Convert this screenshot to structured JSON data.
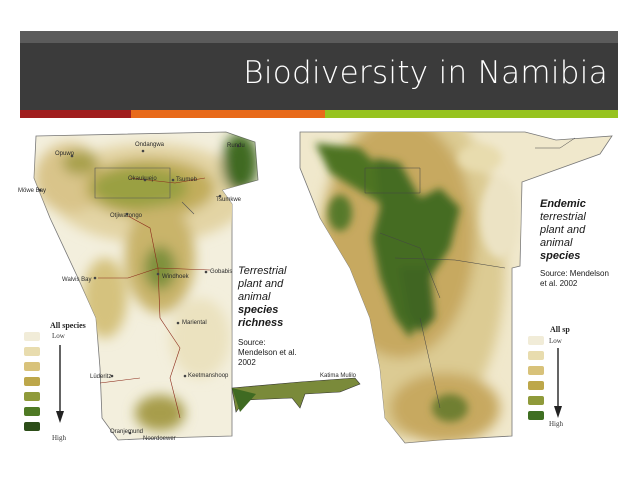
{
  "slide": {
    "title": "Biodiversity in Namibia"
  },
  "map_left": {
    "places": {
      "rundu": "Rundu",
      "ondangwa": "Ondangwa",
      "opuwo": "Opuwo",
      "mowe_bay": "Möwe Bay",
      "okaukuejo": "Okaukuejo",
      "tsumeb": "Tsumeb",
      "tsumkwe": "Tsumkwe",
      "otjiwarongo": "Otjiwarongo",
      "walvis_bay": "Walvis Bay",
      "windhoek": "Windhoek",
      "gobabis": "Gobabis",
      "mariental": "Mariental",
      "luderitz": "Lüderitz",
      "keetmanshoop": "Keetmanshoop",
      "oranjemund": "Oranjemund",
      "noordoewer": "Noordoewer",
      "katima": "Katima Mulilo"
    },
    "caption": {
      "line1": "Terrestrial",
      "line2": "plant and",
      "line3": "animal",
      "line4": "species",
      "line5": "richness",
      "source1": "Source:",
      "source2": "Mendelson et al.",
      "source3": "2002"
    },
    "legend": {
      "title": "All species",
      "low": "Low",
      "high": "High",
      "colors": [
        "#f1ecd8",
        "#e8dcae",
        "#d8c27a",
        "#bda74a",
        "#8f9a3a",
        "#4f7a24",
        "#2c4d18"
      ]
    }
  },
  "map_right": {
    "caption": {
      "line1": "Endemic",
      "line2": "terrestrial",
      "line3": "plant and",
      "line4": "animal",
      "line5": "species",
      "source1": "Source: Mendelson",
      "source2": "et al. 2002"
    },
    "legend": {
      "title": "All sp",
      "low": "Low",
      "high": "High",
      "colors": [
        "#f1ecd8",
        "#e8dcae",
        "#d8c27a",
        "#bda74a",
        "#8f9a3a",
        "#3f6f22"
      ]
    }
  }
}
